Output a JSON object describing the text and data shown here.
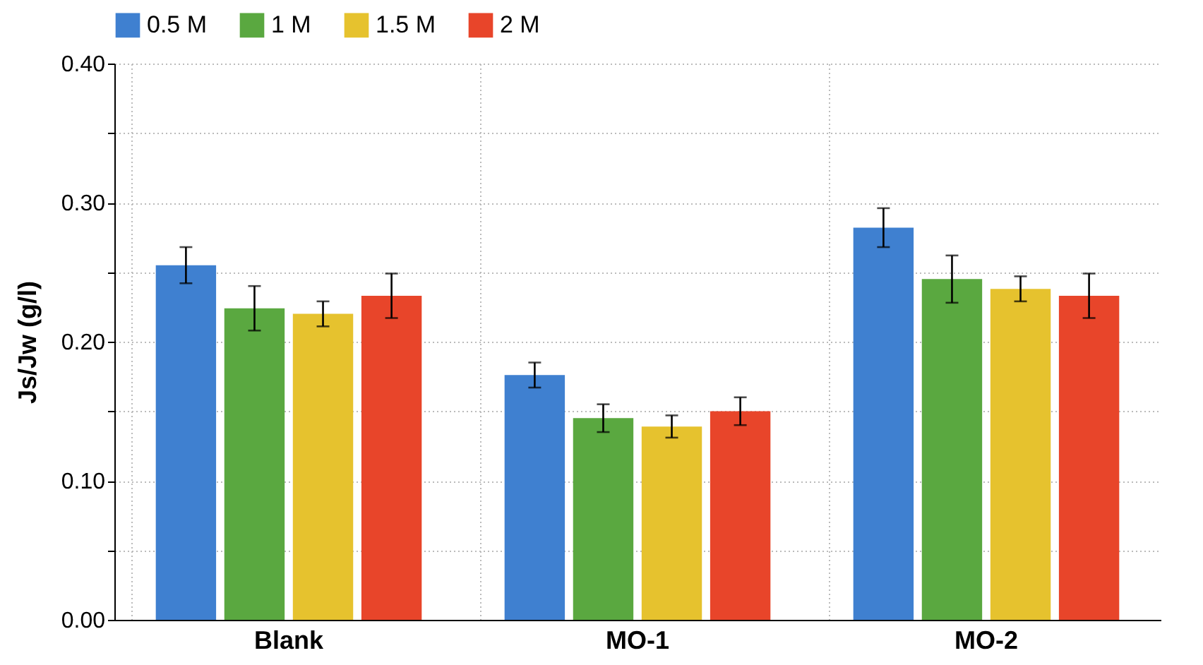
{
  "chart_data": {
    "type": "bar",
    "ylabel": "Js/Jw (g/l)",
    "categories": [
      "Blank",
      "MO-1",
      "MO-2"
    ],
    "series": [
      {
        "name": "0.5 M",
        "color": "#3f80d0",
        "values": [
          0.255,
          0.176,
          0.282
        ],
        "errors": [
          0.013,
          0.009,
          0.014
        ]
      },
      {
        "name": "1 M",
        "color": "#5aa840",
        "values": [
          0.224,
          0.145,
          0.245
        ],
        "errors": [
          0.016,
          0.01,
          0.017
        ]
      },
      {
        "name": "1.5 M",
        "color": "#e6c22e",
        "values": [
          0.22,
          0.139,
          0.238
        ],
        "errors": [
          0.009,
          0.008,
          0.009
        ]
      },
      {
        "name": "2 M",
        "color": "#e8452a",
        "values": [
          0.233,
          0.15,
          0.233
        ],
        "errors": [
          0.016,
          0.01,
          0.016
        ]
      }
    ],
    "ylim": [
      0,
      0.4
    ],
    "yticks": [
      {
        "value": 0,
        "label": "0.00"
      },
      {
        "value": 0.05,
        "label": null
      },
      {
        "value": 0.1,
        "label": "0.10"
      },
      {
        "value": 0.15,
        "label": null
      },
      {
        "value": 0.2,
        "label": "0.20"
      },
      {
        "value": 0.25,
        "label": null
      },
      {
        "value": 0.3,
        "label": "0.30"
      },
      {
        "value": 0.35,
        "label": null
      },
      {
        "value": 0.4,
        "label": "0.40"
      }
    ],
    "grid": true,
    "legend": "top"
  }
}
